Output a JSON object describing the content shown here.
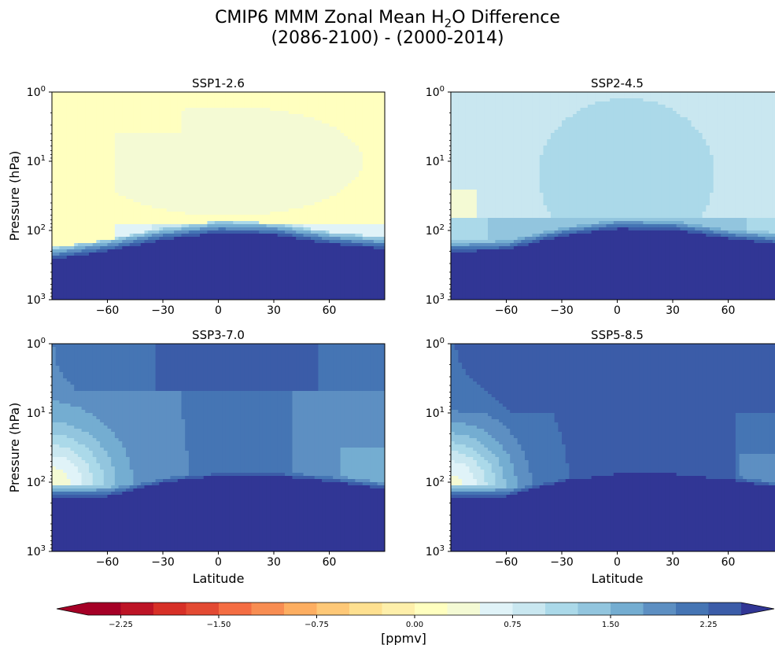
{
  "chart_data": {
    "type": "contourf",
    "title_line1_prefix": "CMIP6 MMM Zonal Mean H",
    "title_line1_sub": "2",
    "title_line1_suffix": "O Difference",
    "title_line2": "(2086-2100) - (2000-2014)",
    "panels": [
      {
        "title": "SSP1-2.6",
        "ylabel": "Pressure (hPa)",
        "xlabel": ""
      },
      {
        "title": "SSP2-4.5",
        "ylabel": "",
        "xlabel": ""
      },
      {
        "title": "SSP3-7.0",
        "ylabel": "Pressure (hPa)",
        "xlabel": "Latitude"
      },
      {
        "title": "SSP5-8.5",
        "ylabel": "",
        "xlabel": "Latitude"
      }
    ],
    "x_ticks": [
      "−60",
      "−30",
      "0",
      "30",
      "60"
    ],
    "x_tick_values": [
      -60,
      -30,
      0,
      30,
      60
    ],
    "xlim": [
      -90,
      90
    ],
    "y_scale": "log",
    "y_reversed": true,
    "ylim": [
      1000,
      1
    ],
    "y_ticks": [
      {
        "base": "10",
        "exp": "0",
        "value": 1
      },
      {
        "base": "10",
        "exp": "1",
        "value": 10
      },
      {
        "base": "10",
        "exp": "2",
        "value": 100
      },
      {
        "base": "10",
        "exp": "3",
        "value": 1000
      }
    ],
    "colorbar": {
      "label": "[ppmv]",
      "levels": [
        -2.5,
        2.5
      ],
      "step": 0.25,
      "extend": "both",
      "tick_labels": [
        "−2.25",
        "−1.50",
        "−0.75",
        "0.00",
        "0.75",
        "1.50",
        "2.25"
      ],
      "tick_values": [
        -2.25,
        -1.5,
        -0.75,
        0.0,
        0.75,
        1.5,
        2.25
      ],
      "colors": [
        "#a50026",
        "#bd1426",
        "#d73027",
        "#e34a33",
        "#f46d43",
        "#f88d52",
        "#fdae61",
        "#fec877",
        "#fee090",
        "#feefaa",
        "#ffffbf",
        "#f4fad4",
        "#e0f3f8",
        "#c9e7f0",
        "#abd9e9",
        "#92c5de",
        "#74add1",
        "#5d8fc2",
        "#4575b4",
        "#3b5ca8",
        "#313695"
      ],
      "under_color": "#a50026",
      "over_color": "#313695"
    },
    "tropopause_hPa_estimate": {
      "lat": [
        -90,
        -60,
        -30,
        0,
        30,
        60,
        90
      ],
      "ssp1": [
        270,
        205,
        140,
        112,
        118,
        160,
        190
      ],
      "ssp2": [
        210,
        195,
        125,
        97,
        100,
        135,
        165
      ],
      "ssp3": [
        170,
        165,
        105,
        82,
        82,
        100,
        130
      ],
      "ssp5": [
        170,
        165,
        100,
        78,
        78,
        95,
        125
      ]
    }
  }
}
